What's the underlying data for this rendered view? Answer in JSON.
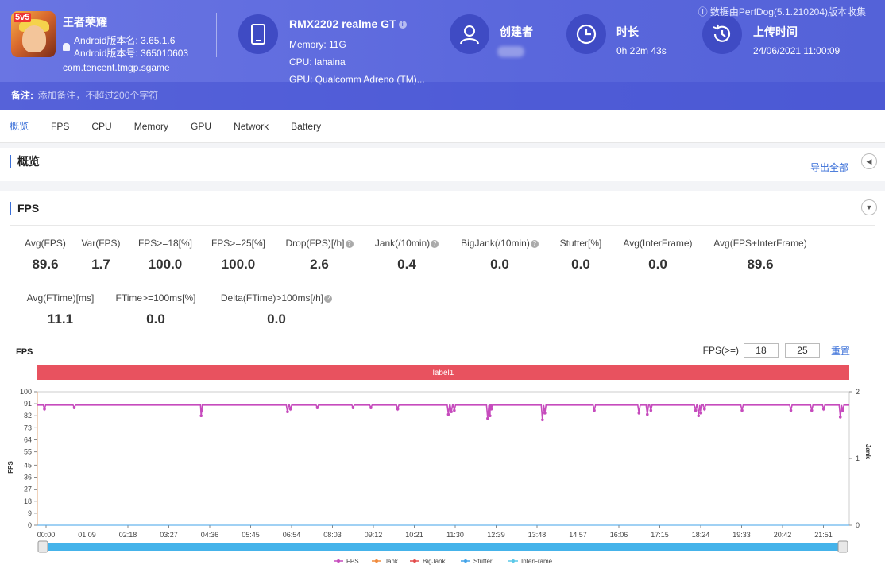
{
  "header": {
    "app_name": "王者荣耀",
    "app_version_name": "Android版本名: 3.65.1.6",
    "app_version_code": "Android版本号: 365010603",
    "package": "com.tencent.tmgp.sgame",
    "app_icon_text": "5v5",
    "device_title": "RMX2202 realme GT",
    "device_memory": "Memory: 11G",
    "device_cpu": "CPU: lahaina",
    "device_gpu": "GPU: Qualcomm Adreno (TM)...",
    "creator_label": "创建者",
    "duration_label": "时长",
    "duration_value": "0h 22m 43s",
    "upload_label": "上传时间",
    "upload_value": "24/06/2021 11:00:09",
    "data_source": "ⓘ 数据由PerfDog(5.1.210204)版本收集",
    "note_label": "备注:",
    "note_placeholder": "添加备注，不超过200个字符"
  },
  "tabs": [
    "概览",
    "FPS",
    "CPU",
    "Memory",
    "GPU",
    "Network",
    "Battery"
  ],
  "overview": {
    "title": "概览",
    "export_label": "导出全部"
  },
  "fps_section": {
    "title": "FPS",
    "metrics_row1": [
      {
        "label": "Avg(FPS)",
        "value": "89.6",
        "help": false
      },
      {
        "label": "Var(FPS)",
        "value": "1.7",
        "help": false
      },
      {
        "label": "FPS>=18[%]",
        "value": "100.0",
        "help": false
      },
      {
        "label": "FPS>=25[%]",
        "value": "100.0",
        "help": false
      },
      {
        "label": "Drop(FPS)[/h]",
        "value": "2.6",
        "help": true
      },
      {
        "label": "Jank(/10min)",
        "value": "0.4",
        "help": true
      },
      {
        "label": "BigJank(/10min)",
        "value": "0.0",
        "help": true
      },
      {
        "label": "Stutter[%]",
        "value": "0.0",
        "help": false
      },
      {
        "label": "Avg(InterFrame)",
        "value": "0.0",
        "help": false
      },
      {
        "label": "Avg(FPS+InterFrame)",
        "value": "89.6",
        "help": false
      }
    ],
    "metrics_row2": [
      {
        "label": "Avg(FTime)[ms]",
        "value": "11.1",
        "help": false
      },
      {
        "label": "FTime>=100ms[%]",
        "value": "0.0",
        "help": false
      },
      {
        "label": "Delta(FTime)>100ms[/h]",
        "value": "0.0",
        "help": true
      }
    ],
    "threshold_label": "FPS(>=)",
    "threshold_1": "18",
    "threshold_2": "25",
    "reset_label": "重置"
  },
  "chart_data": {
    "type": "line",
    "title": "FPS",
    "band_label": "label1",
    "ylabel": "FPS",
    "y2label": "Jank",
    "ylim": [
      0,
      100
    ],
    "y2lim": [
      0,
      2
    ],
    "y_ticks": [
      0,
      9,
      18,
      27,
      36,
      45,
      55,
      64,
      73,
      82,
      91,
      100
    ],
    "y2_ticks": [
      0,
      1,
      2
    ],
    "x_ticks": [
      "00:00",
      "01:09",
      "02:18",
      "03:27",
      "04:36",
      "05:45",
      "06:54",
      "08:03",
      "09:12",
      "10:21",
      "11:30",
      "12:39",
      "13:48",
      "14:57",
      "16:06",
      "17:15",
      "18:24",
      "19:33",
      "20:42",
      "21:51"
    ],
    "x_range_seconds": [
      0,
      1363
    ],
    "series": [
      {
        "name": "FPS",
        "color": "#c64bbd",
        "baseline": 90,
        "dips": [
          {
            "t": 12,
            "v": 87
          },
          {
            "t": 62,
            "v": 88
          },
          {
            "t": 275,
            "v": 82
          },
          {
            "t": 276,
            "v": 86
          },
          {
            "t": 420,
            "v": 85
          },
          {
            "t": 425,
            "v": 87
          },
          {
            "t": 470,
            "v": 88
          },
          {
            "t": 530,
            "v": 88
          },
          {
            "t": 560,
            "v": 88
          },
          {
            "t": 605,
            "v": 87
          },
          {
            "t": 690,
            "v": 83
          },
          {
            "t": 695,
            "v": 85
          },
          {
            "t": 700,
            "v": 86
          },
          {
            "t": 756,
            "v": 80
          },
          {
            "t": 760,
            "v": 82
          },
          {
            "t": 762,
            "v": 87
          },
          {
            "t": 848,
            "v": 79
          },
          {
            "t": 852,
            "v": 84
          },
          {
            "t": 935,
            "v": 86
          },
          {
            "t": 1010,
            "v": 84
          },
          {
            "t": 1024,
            "v": 83
          },
          {
            "t": 1030,
            "v": 86
          },
          {
            "t": 1105,
            "v": 86
          },
          {
            "t": 1110,
            "v": 82
          },
          {
            "t": 1114,
            "v": 84
          },
          {
            "t": 1120,
            "v": 87
          },
          {
            "t": 1183,
            "v": 86
          },
          {
            "t": 1265,
            "v": 86
          },
          {
            "t": 1300,
            "v": 86
          },
          {
            "t": 1320,
            "v": 87
          },
          {
            "t": 1348,
            "v": 81
          },
          {
            "t": 1352,
            "v": 86
          }
        ]
      },
      {
        "name": "Jank",
        "color": "#f08a3c"
      },
      {
        "name": "BigJank",
        "color": "#e34b4b"
      },
      {
        "name": "Stutter",
        "color": "#42a3e8"
      },
      {
        "name": "InterFrame",
        "color": "#5ac8e8"
      }
    ]
  }
}
